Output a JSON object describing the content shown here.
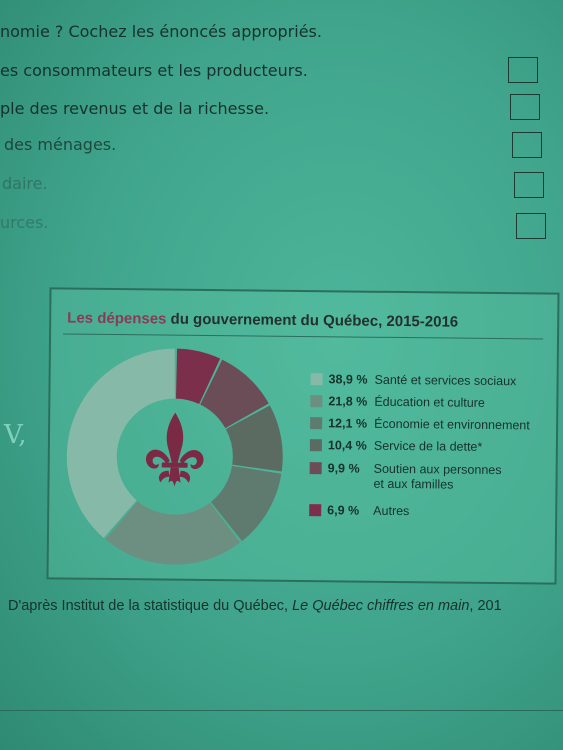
{
  "questions": [
    {
      "text": "nomie ? Cochez les énoncés appropriés."
    },
    {
      "text": "es consommateurs et les producteurs."
    },
    {
      "text": "ple des revenus et de la richesse."
    },
    {
      "text": "des ménages."
    },
    {
      "text": "daire."
    },
    {
      "text": "urces."
    }
  ],
  "chart_data": {
    "type": "pie",
    "title": "Les dépenses du gouvernement du Québec, 2015-2016",
    "title_accent": "Les dépenses",
    "title_rest": " du gouvernement du Québec, 2015-2016",
    "slices": [
      {
        "label": "Santé et services sociaux",
        "value": 38.9,
        "value_text": "38,9 %",
        "color": "#86b9a8"
      },
      {
        "label": "Éducation et culture",
        "value": 21.8,
        "value_text": "21,8 %",
        "color": "#6d8f82"
      },
      {
        "label": "Économie et environnement",
        "value": 12.1,
        "value_text": "12,1 %",
        "color": "#5f7b70"
      },
      {
        "label": "Service de la dette*",
        "value": 10.4,
        "value_text": "10,4 %",
        "color": "#5c6b62"
      },
      {
        "label": "Soutien aux personnes",
        "label2": "et aux familles",
        "value": 9.9,
        "value_text": "9,9 %",
        "color": "#6a4d57"
      },
      {
        "label": "Autres",
        "value": 6.9,
        "value_text": "6,9 %",
        "color": "#7c2f4a"
      }
    ],
    "emblem": "fleur-de-lis-icon",
    "emblem_color": "#7a2a45"
  },
  "source": {
    "prefix": "D'après Institut de la statistique du Québec, ",
    "italic": "Le Québec chiffres en main",
    "suffix": ", 201"
  },
  "margin_mark": "V,"
}
